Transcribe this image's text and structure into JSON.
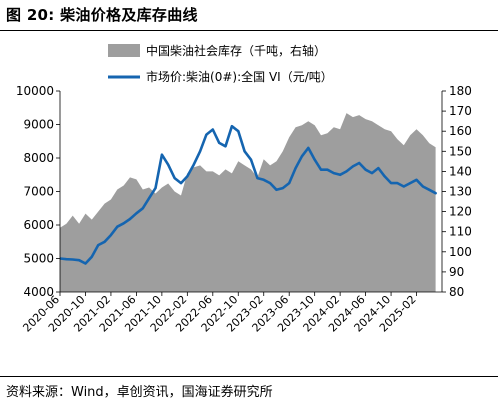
{
  "figure": {
    "title": "图 20:  柴油价格及库存曲线",
    "source": "资料来源：Wind，卓创资讯，国海证券研究所"
  },
  "chart_data": {
    "type": "line",
    "legend": {
      "placement": "top",
      "entries": [
        {
          "label": "中国柴油社会库存（千吨，右轴）",
          "kind": "area",
          "color": "#9e9e9e"
        },
        {
          "label": "市场价:柴油(0#):全国 VI（元/吨）",
          "kind": "line",
          "color": "#1565b0"
        }
      ]
    },
    "x_axis": {
      "tick_labels": [
        "2020-06",
        "2020-10",
        "2021-02",
        "2021-06",
        "2021-10",
        "2022-02",
        "2022-06",
        "2022-10",
        "2023-02",
        "2023-06",
        "2023-10",
        "2024-02",
        "2024-06",
        "2024-10",
        "2025-02"
      ],
      "range": [
        "2020-06",
        "2025-06"
      ]
    },
    "y_left": {
      "min": 4000,
      "max": 10000,
      "step": 1000,
      "tick_labels": [
        "4000",
        "5000",
        "6000",
        "7000",
        "8000",
        "9000",
        "10000"
      ]
    },
    "y_right": {
      "min": 80,
      "max": 180,
      "step": 10,
      "tick_labels": [
        "80",
        "90",
        "100",
        "110",
        "120",
        "130",
        "140",
        "150",
        "160",
        "170",
        "180"
      ]
    },
    "grid": false,
    "series": [
      {
        "name": "中国柴油社会库存（千吨，右轴）",
        "type": "area",
        "axis": "right",
        "color": "#9e9e9e",
        "x": [
          "2020-06",
          "2020-07",
          "2020-08",
          "2020-09",
          "2020-10",
          "2020-11",
          "2020-12",
          "2021-01",
          "2021-02",
          "2021-03",
          "2021-04",
          "2021-05",
          "2021-06",
          "2021-07",
          "2021-08",
          "2021-09",
          "2021-10",
          "2021-11",
          "2021-12",
          "2022-01",
          "2022-02",
          "2022-03",
          "2022-04",
          "2022-05",
          "2022-06",
          "2022-07",
          "2022-08",
          "2022-09",
          "2022-10",
          "2022-11",
          "2022-12",
          "2023-01",
          "2023-02",
          "2023-03",
          "2023-04",
          "2023-05",
          "2023-06",
          "2023-07",
          "2023-08",
          "2023-09",
          "2023-10",
          "2023-11",
          "2023-12",
          "2024-01",
          "2024-02",
          "2024-03",
          "2024-04",
          "2024-05",
          "2024-06",
          "2024-07",
          "2024-08",
          "2024-09",
          "2024-10",
          "2024-11",
          "2024-12",
          "2025-01",
          "2025-02",
          "2025-03",
          "2025-04",
          "2025-05"
        ],
        "values": [
          112,
          114,
          118,
          114,
          119,
          116,
          120,
          124,
          126,
          131,
          133,
          137,
          136,
          131,
          132,
          129,
          132,
          134,
          130,
          128,
          139,
          142,
          143,
          140,
          140,
          138,
          141,
          139,
          145,
          143,
          141,
          137,
          146,
          143,
          145,
          150,
          157,
          162,
          163,
          165,
          163,
          158,
          159,
          162,
          161,
          169,
          167,
          168,
          166,
          165,
          163,
          161,
          160,
          156,
          153,
          158,
          161,
          158,
          154,
          152
        ]
      },
      {
        "name": "市场价:柴油(0#):全国 VI（元/吨）",
        "type": "line",
        "axis": "left",
        "color": "#1565b0",
        "x": [
          "2020-06",
          "2020-07",
          "2020-08",
          "2020-09",
          "2020-10",
          "2020-11",
          "2020-12",
          "2021-01",
          "2021-02",
          "2021-03",
          "2021-04",
          "2021-05",
          "2021-06",
          "2021-07",
          "2021-08",
          "2021-09",
          "2021-10",
          "2021-11",
          "2021-12",
          "2022-01",
          "2022-02",
          "2022-03",
          "2022-04",
          "2022-05",
          "2022-06",
          "2022-07",
          "2022-08",
          "2022-09",
          "2022-10",
          "2022-11",
          "2022-12",
          "2023-01",
          "2023-02",
          "2023-03",
          "2023-04",
          "2023-05",
          "2023-06",
          "2023-07",
          "2023-08",
          "2023-09",
          "2023-10",
          "2023-11",
          "2023-12",
          "2024-01",
          "2024-02",
          "2024-03",
          "2024-04",
          "2024-05",
          "2024-06",
          "2024-07",
          "2024-08",
          "2024-09",
          "2024-10",
          "2024-11",
          "2024-12",
          "2025-01",
          "2025-02",
          "2025-03",
          "2025-04",
          "2025-05"
        ],
        "values": [
          5000,
          4980,
          4970,
          4950,
          4850,
          5050,
          5400,
          5500,
          5700,
          5950,
          6050,
          6180,
          6350,
          6500,
          6800,
          7100,
          8100,
          7800,
          7400,
          7250,
          7450,
          7800,
          8200,
          8700,
          8850,
          8450,
          8350,
          8950,
          8800,
          8200,
          7950,
          7400,
          7350,
          7250,
          7050,
          7100,
          7250,
          7700,
          8050,
          8300,
          7950,
          7650,
          7650,
          7550,
          7500,
          7600,
          7750,
          7850,
          7650,
          7550,
          7700,
          7450,
          7250,
          7250,
          7150,
          7250,
          7350,
          7150,
          7050,
          6950
        ]
      }
    ]
  }
}
